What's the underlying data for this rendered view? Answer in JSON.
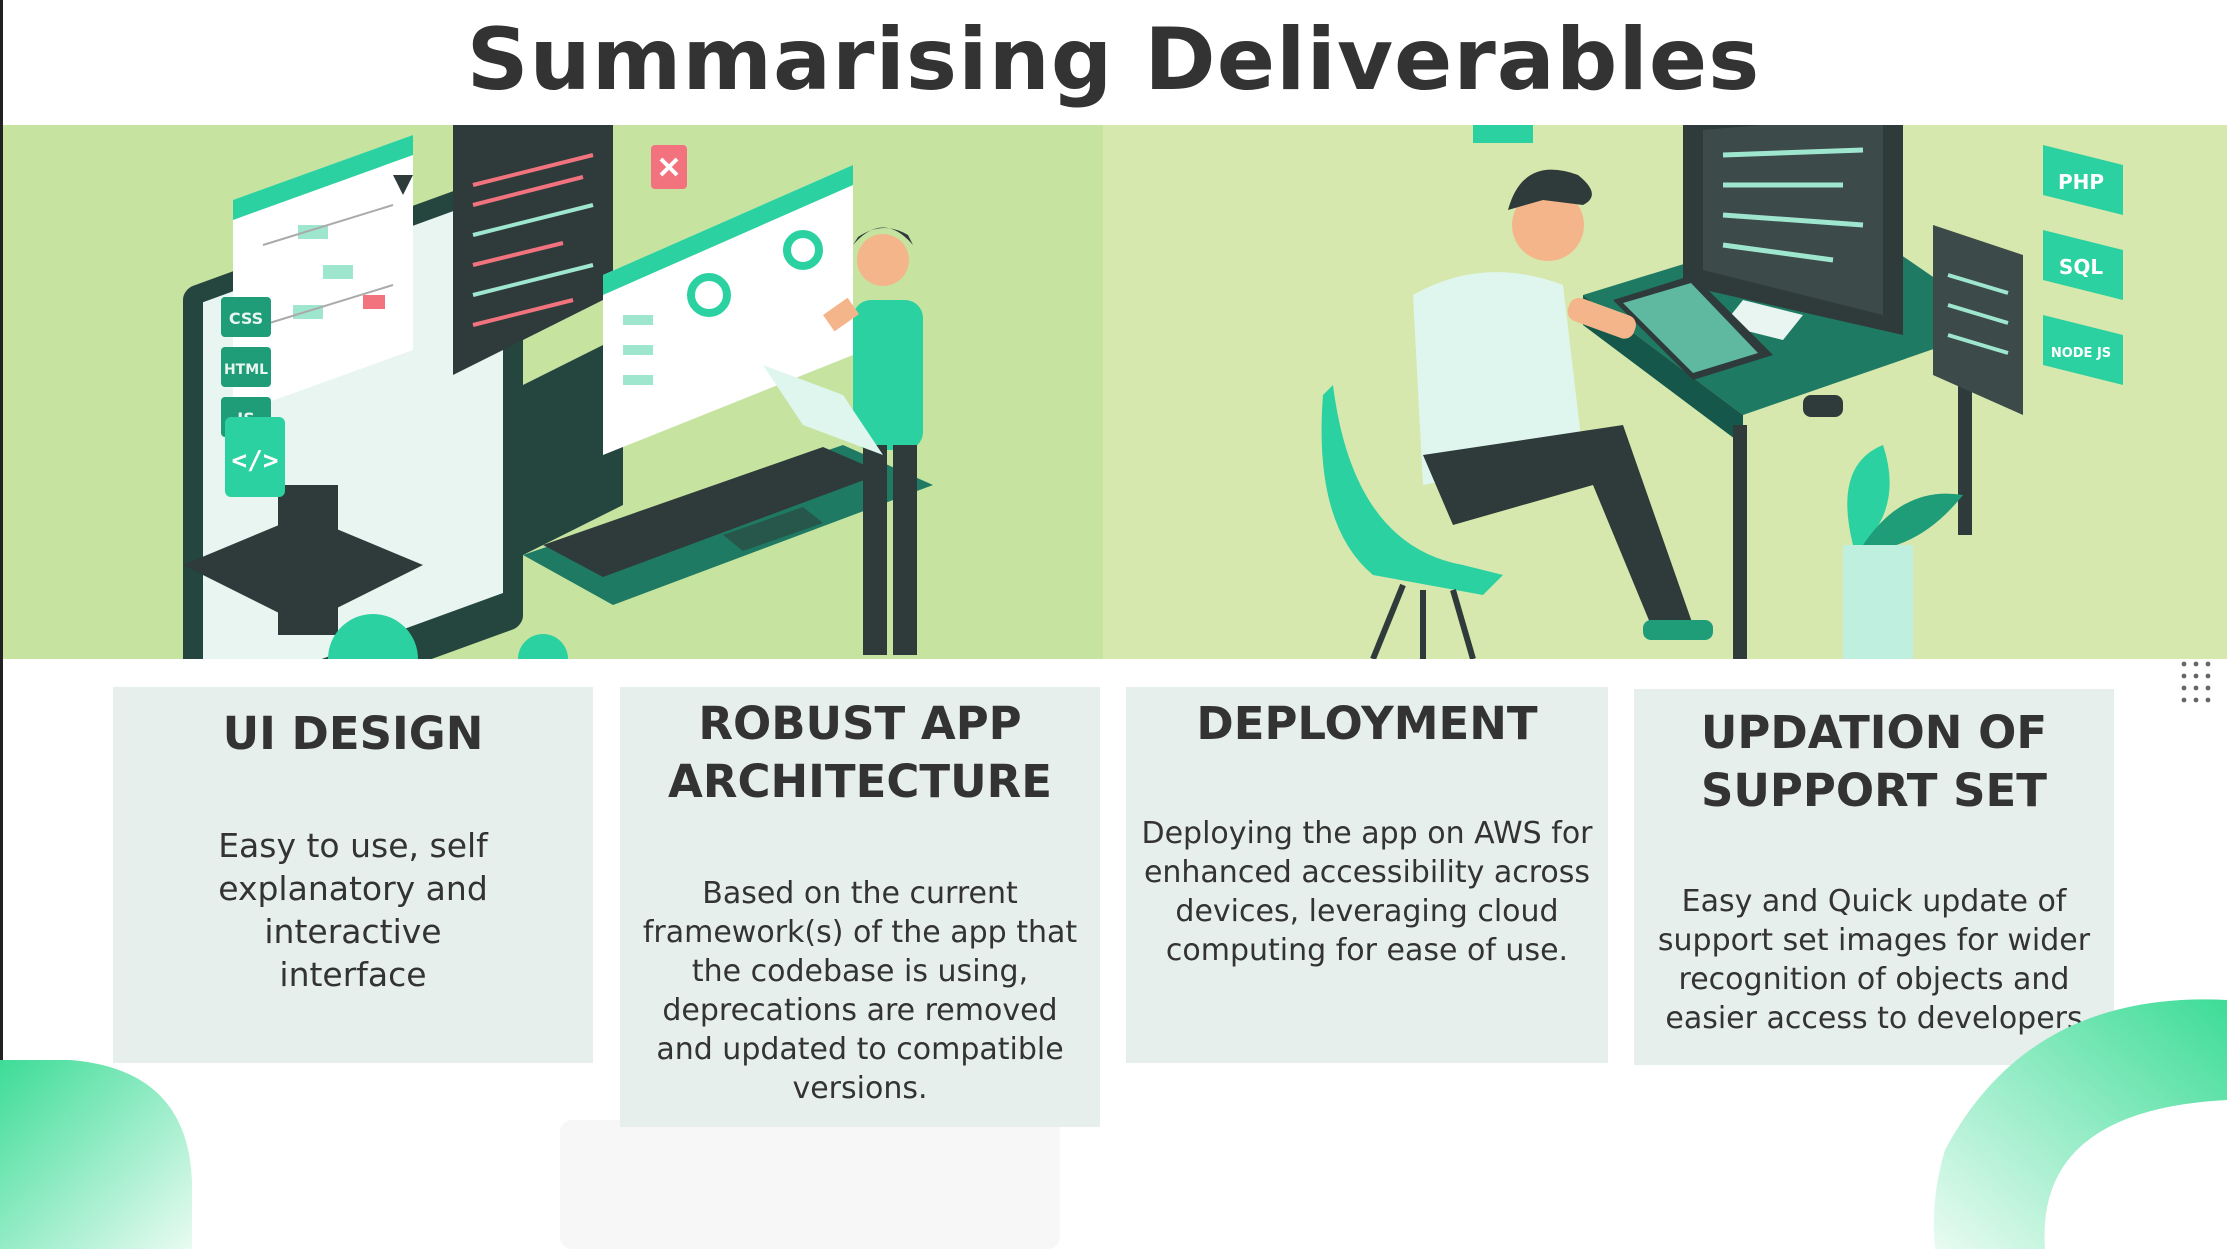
{
  "slide": {
    "title": "Summarising Deliverables"
  },
  "illustration": {
    "left_badges": [
      "CSS",
      "HTML",
      "JS"
    ],
    "right_badges": [
      "PHP",
      "SQL",
      "NODE JS"
    ]
  },
  "cards": [
    {
      "title_lines": [
        "UI DESIGN"
      ],
      "description_lines": [
        "Easy to use, self",
        "explanatory and interactive",
        "interface"
      ]
    },
    {
      "title_lines": [
        "ROBUST APP",
        "ARCHITECTURE"
      ],
      "description_lines": [
        "Based on the current",
        "framework(s) of the app that",
        "the codebase is using,",
        "deprecations are removed",
        "and updated to compatible",
        "versions."
      ]
    },
    {
      "title_lines": [
        "DEPLOYMENT"
      ],
      "description_lines": [
        "Deploying the app on AWS for",
        "enhanced accessibility across",
        "devices, leveraging cloud",
        "computing for ease of use."
      ]
    },
    {
      "title_lines": [
        "UPDATION OF",
        "SUPPORT SET"
      ],
      "description_lines": [
        "Easy and Quick update of",
        "support set images for wider",
        "recognition of objects and",
        "easier access to developers"
      ]
    }
  ],
  "colors": {
    "banner_green": "#c6e3a0",
    "teal": "#2bd1a0",
    "dark_teal": "#1f7a64",
    "card_bg": "#e6efec",
    "text": "#333333"
  }
}
